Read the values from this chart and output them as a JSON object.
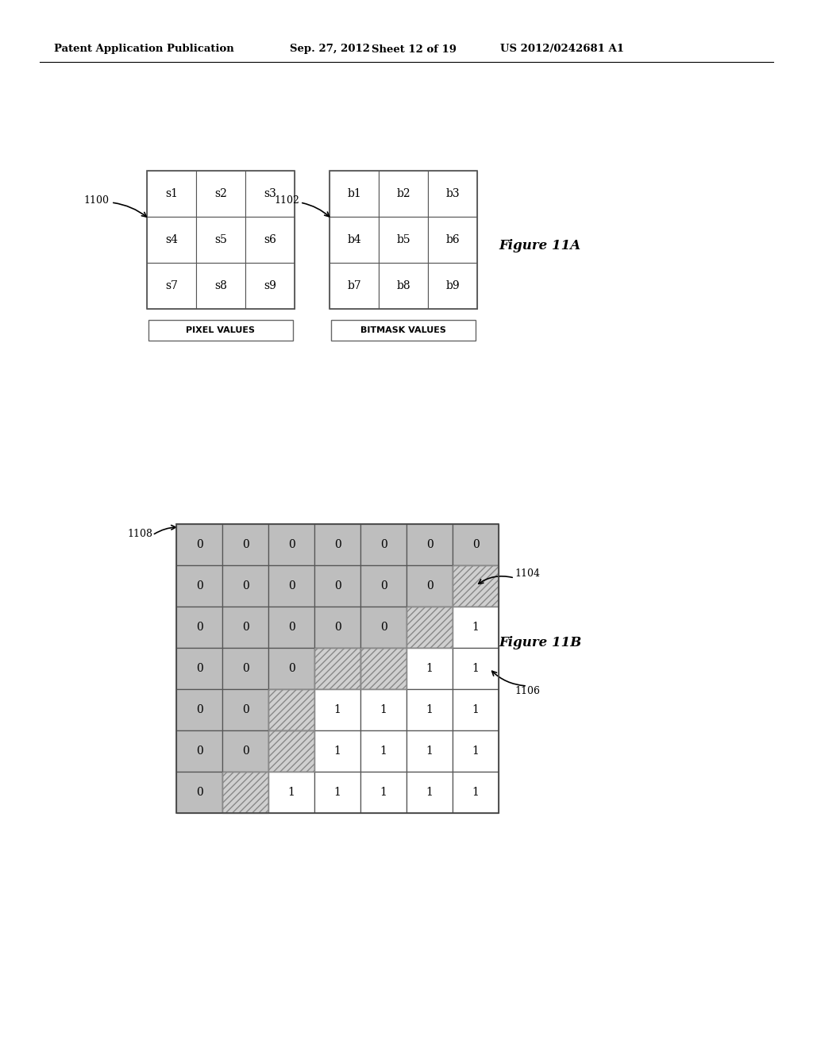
{
  "background_color": "#ffffff",
  "header_text": "Patent Application Publication",
  "header_date": "Sep. 27, 2012",
  "header_sheet": "Sheet 12 of 19",
  "header_patent": "US 2012/0242681 A1",
  "fig11a_label": "Figure 11A",
  "fig11b_label": "Figure 11B",
  "grid1_label": "1100",
  "grid2_label": "1102",
  "grid3_label": "1108",
  "arrow1_label": "1104",
  "arrow2_label": "1106",
  "grid1_cells": [
    [
      "s1",
      "s2",
      "s3"
    ],
    [
      "s4",
      "s5",
      "s6"
    ],
    [
      "s7",
      "s8",
      "s9"
    ]
  ],
  "grid2_cells": [
    [
      "b1",
      "b2",
      "b3"
    ],
    [
      "b4",
      "b5",
      "b6"
    ],
    [
      "b7",
      "b8",
      "b9"
    ]
  ],
  "grid1_caption": "PIXEL VALUES",
  "grid2_caption": "BITMASK VALUES",
  "grid_color": "#555555",
  "cell_bg": "#ffffff",
  "gray_bg": "#bebebe",
  "big_grid_values": [
    [
      0,
      0,
      0,
      0,
      0,
      0,
      0
    ],
    [
      0,
      0,
      0,
      0,
      0,
      0,
      "H"
    ],
    [
      0,
      0,
      0,
      0,
      0,
      "H",
      1
    ],
    [
      0,
      0,
      0,
      "H",
      "H",
      1,
      1
    ],
    [
      0,
      0,
      "H",
      1,
      1,
      1,
      1
    ],
    [
      0,
      0,
      "H",
      1,
      1,
      1,
      1
    ],
    [
      0,
      "H",
      1,
      1,
      1,
      1,
      1
    ]
  ],
  "font_size_header": 9.5,
  "font_size_cell": 10,
  "font_size_caption": 8,
  "font_size_label": 9,
  "font_size_figure": 12
}
